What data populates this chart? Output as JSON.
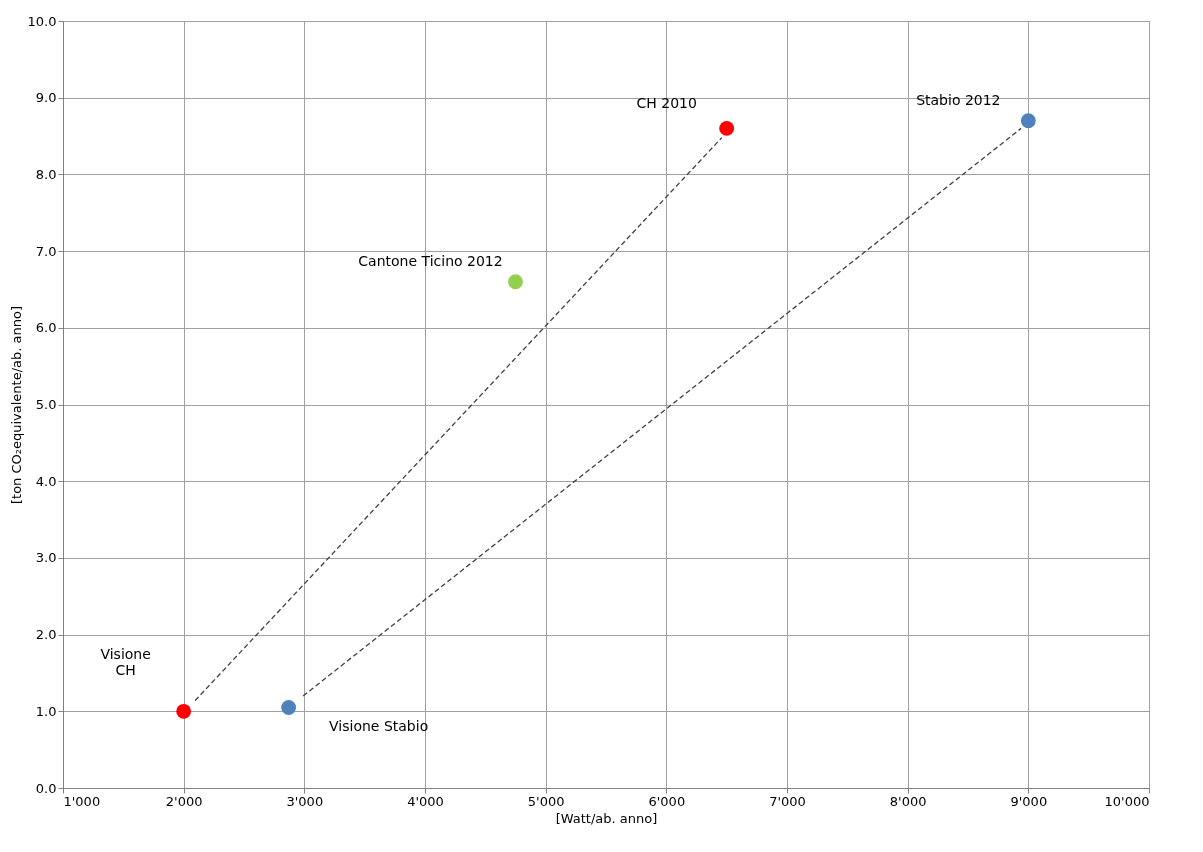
{
  "chart_data": {
    "type": "scatter",
    "xlabel": "[Watt/ab. anno]",
    "ylabel": "[ton CO₂equivalente/ab. anno]",
    "xlim": [
      1000,
      10000
    ],
    "ylim": [
      0,
      10
    ],
    "xticks": [
      {
        "value": 1000,
        "label": "1'000"
      },
      {
        "value": 2000,
        "label": "2'000"
      },
      {
        "value": 3000,
        "label": "3'000"
      },
      {
        "value": 4000,
        "label": "4'000"
      },
      {
        "value": 5000,
        "label": "5'000"
      },
      {
        "value": 6000,
        "label": "6'000"
      },
      {
        "value": 7000,
        "label": "7'000"
      },
      {
        "value": 8000,
        "label": "8'000"
      },
      {
        "value": 9000,
        "label": "9'000"
      },
      {
        "value": 10000,
        "label": "10'000"
      }
    ],
    "yticks": [
      {
        "value": 0,
        "label": "0.0"
      },
      {
        "value": 1,
        "label": "1.0"
      },
      {
        "value": 2,
        "label": "2.0"
      },
      {
        "value": 3,
        "label": "3.0"
      },
      {
        "value": 4,
        "label": "4.0"
      },
      {
        "value": 5,
        "label": "5.0"
      },
      {
        "value": 6,
        "label": "6.0"
      },
      {
        "value": 7,
        "label": "7.0"
      },
      {
        "value": 8,
        "label": "8.0"
      },
      {
        "value": 9,
        "label": "9.0"
      },
      {
        "value": 10,
        "label": "10.0"
      }
    ],
    "grid": true,
    "marker": "circle",
    "series": [
      {
        "type": "line",
        "color": "#404040",
        "line_style": "dashed",
        "marker": "none",
        "x": [
          6460,
          2095
        ],
        "values": [
          8.48,
          1.14
        ]
      },
      {
        "type": "line",
        "color": "#404040",
        "line_style": "dashed",
        "marker": "none",
        "x": [
          8940,
          2990
        ],
        "values": [
          8.6,
          1.2
        ]
      },
      {
        "name": "CH 2010",
        "color": "#ff0000",
        "x": [
          6500
        ],
        "values": [
          8.6
        ]
      },
      {
        "name": "Stabio 2012",
        "color": "#4f81bd",
        "x": [
          9000
        ],
        "values": [
          8.7
        ]
      },
      {
        "name": "Cantone Ticino 2012",
        "color": "#92d050",
        "x": [
          4750
        ],
        "values": [
          6.6
        ]
      },
      {
        "name": "Visione\nCH",
        "color": "#ff0000",
        "x": [
          2000
        ],
        "values": [
          1.0
        ]
      },
      {
        "name": "Visione Stabio",
        "color": "#4f81bd",
        "x": [
          2870
        ],
        "values": [
          1.05
        ]
      }
    ]
  }
}
